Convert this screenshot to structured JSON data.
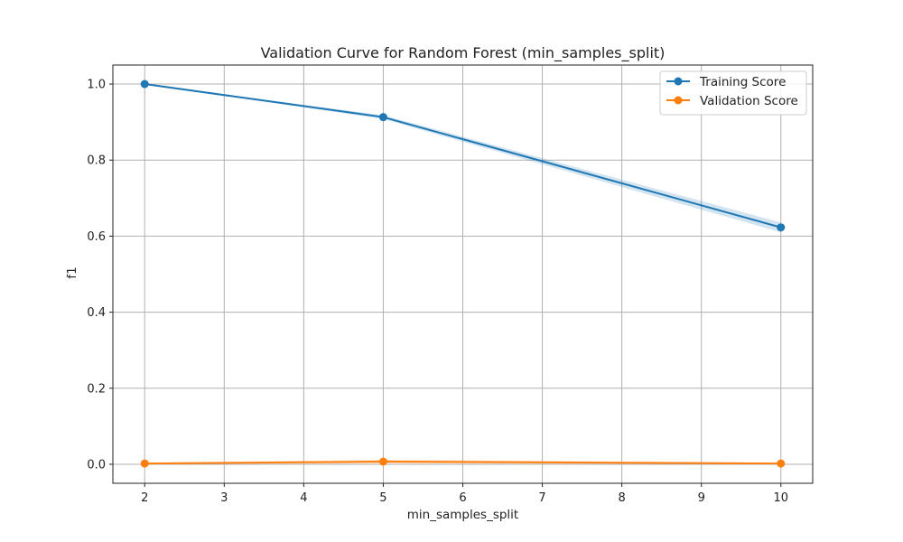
{
  "chart_data": {
    "type": "line",
    "title": "Validation Curve for Random Forest (min_samples_split)",
    "xlabel": "min_samples_split",
    "ylabel": "f1",
    "xlim": [
      1.6,
      10.4
    ],
    "ylim": [
      -0.05,
      1.05
    ],
    "xticks": [
      2,
      3,
      4,
      5,
      6,
      7,
      8,
      9,
      10
    ],
    "yticks": [
      0.0,
      0.2,
      0.4,
      0.6,
      0.8,
      1.0
    ],
    "ytick_labels": [
      "0.0",
      "0.2",
      "0.4",
      "0.6",
      "0.8",
      "1.0"
    ],
    "grid": true,
    "legend_position": "top-right",
    "x": [
      2,
      5,
      10
    ],
    "series": [
      {
        "name": "Training Score",
        "color": "#1f77b4",
        "values": [
          1.0,
          0.913,
          0.623
        ],
        "band_lower": [
          0.999,
          0.908,
          0.61
        ],
        "band_upper": [
          1.0,
          0.918,
          0.636
        ]
      },
      {
        "name": "Validation Score",
        "color": "#ff7f0e",
        "values": [
          0.002,
          0.007,
          0.002
        ],
        "band_lower": [
          0.0,
          0.002,
          0.0
        ],
        "band_upper": [
          0.004,
          0.012,
          0.004
        ]
      }
    ]
  }
}
